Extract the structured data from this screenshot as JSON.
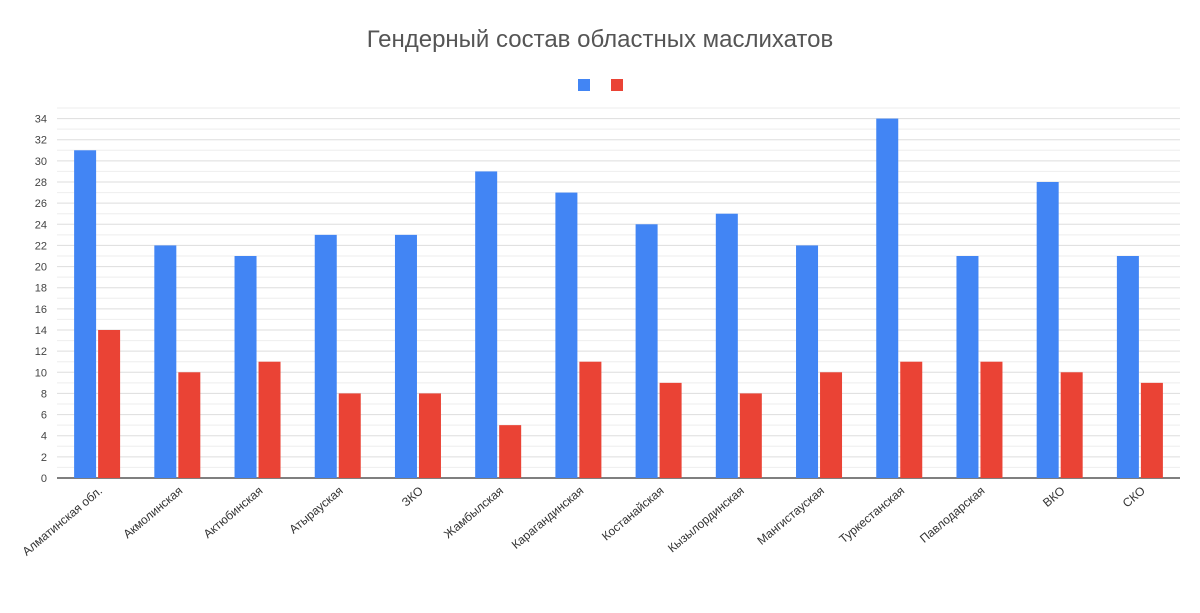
{
  "chart_data": {
    "type": "bar",
    "title": "Гендерный состав областных маслихатов",
    "categories": [
      "Алматинская обл.",
      "Акмолинская",
      "Актюбинская",
      "Атырауская",
      "ЗКО",
      "Жамбылская",
      "Карагандинская",
      "Костанайская",
      "Кызылординская",
      "Мангистауская",
      "Туркестанская",
      "Павлодарская",
      "ВКО",
      "СКО"
    ],
    "series": [
      {
        "color": "#4285f4",
        "values": [
          31,
          22,
          21,
          23,
          23,
          29,
          27,
          24,
          25,
          22,
          34,
          21,
          28,
          21
        ]
      },
      {
        "color": "#ea4335",
        "values": [
          14,
          10,
          11,
          8,
          8,
          5,
          11,
          9,
          8,
          10,
          11,
          11,
          10,
          9
        ]
      }
    ],
    "ylim": [
      0,
      35
    ],
    "yticks": [
      0,
      2,
      4,
      6,
      8,
      10,
      12,
      14,
      16,
      18,
      20,
      22,
      24,
      26,
      28,
      30,
      32,
      34
    ],
    "grid": true,
    "legend_position": "top",
    "xlabel": "",
    "ylabel": ""
  }
}
